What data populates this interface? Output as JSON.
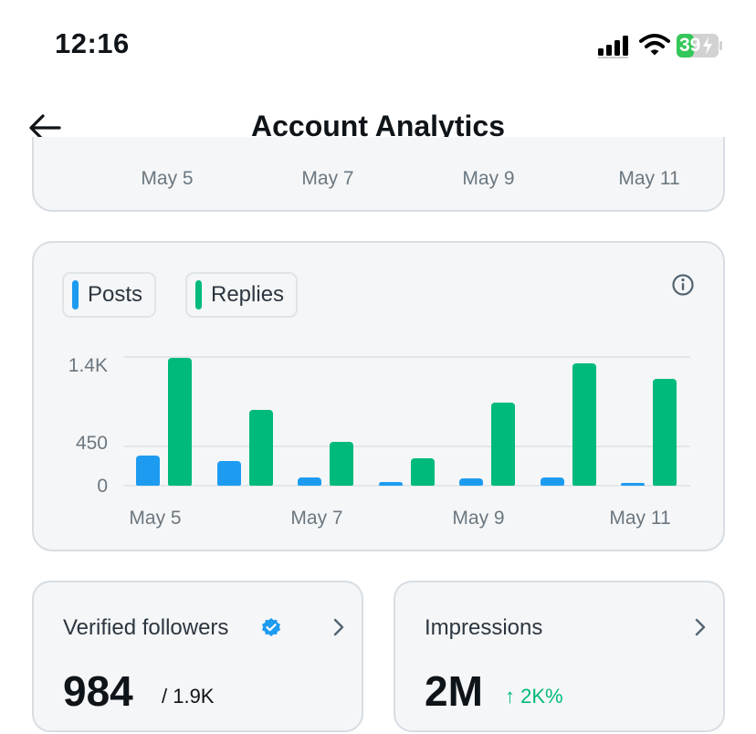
{
  "status_bar": {
    "time": "12:16",
    "battery": "39"
  },
  "header": {
    "title": "Account Analytics"
  },
  "top_card": {
    "x_labels": [
      "May 5",
      "May 7",
      "May 9",
      "May 11"
    ]
  },
  "legend": {
    "posts_label": "Posts",
    "replies_label": "Replies"
  },
  "colors": {
    "posts": "#1d9bf0",
    "replies": "#00ba7c",
    "positive": "#00ba7c"
  },
  "chart_data": {
    "type": "bar",
    "categories": [
      "May 5",
      "May 6",
      "May 7",
      "May 8",
      "May 9",
      "May 10",
      "May 11"
    ],
    "x_tick_labels": [
      "May 5",
      "May 7",
      "May 9",
      "May 11"
    ],
    "y_tick_labels": [
      "1.4K",
      "450",
      "0"
    ],
    "y_ticks": [
      1400,
      450,
      0
    ],
    "ylim": [
      0,
      1400
    ],
    "grid": true,
    "legend": "top-left",
    "series": [
      {
        "name": "Posts",
        "values": [
          330,
          270,
          90,
          35,
          75,
          85,
          25
        ]
      },
      {
        "name": "Replies",
        "values": [
          1380,
          820,
          470,
          300,
          900,
          1320,
          1150
        ]
      }
    ]
  },
  "stats": {
    "verified_followers": {
      "label": "Verified followers",
      "value": "984",
      "total": "/ 1.9K"
    },
    "impressions": {
      "label": "Impressions",
      "value": "2M",
      "change": "↑ 2K%"
    }
  }
}
